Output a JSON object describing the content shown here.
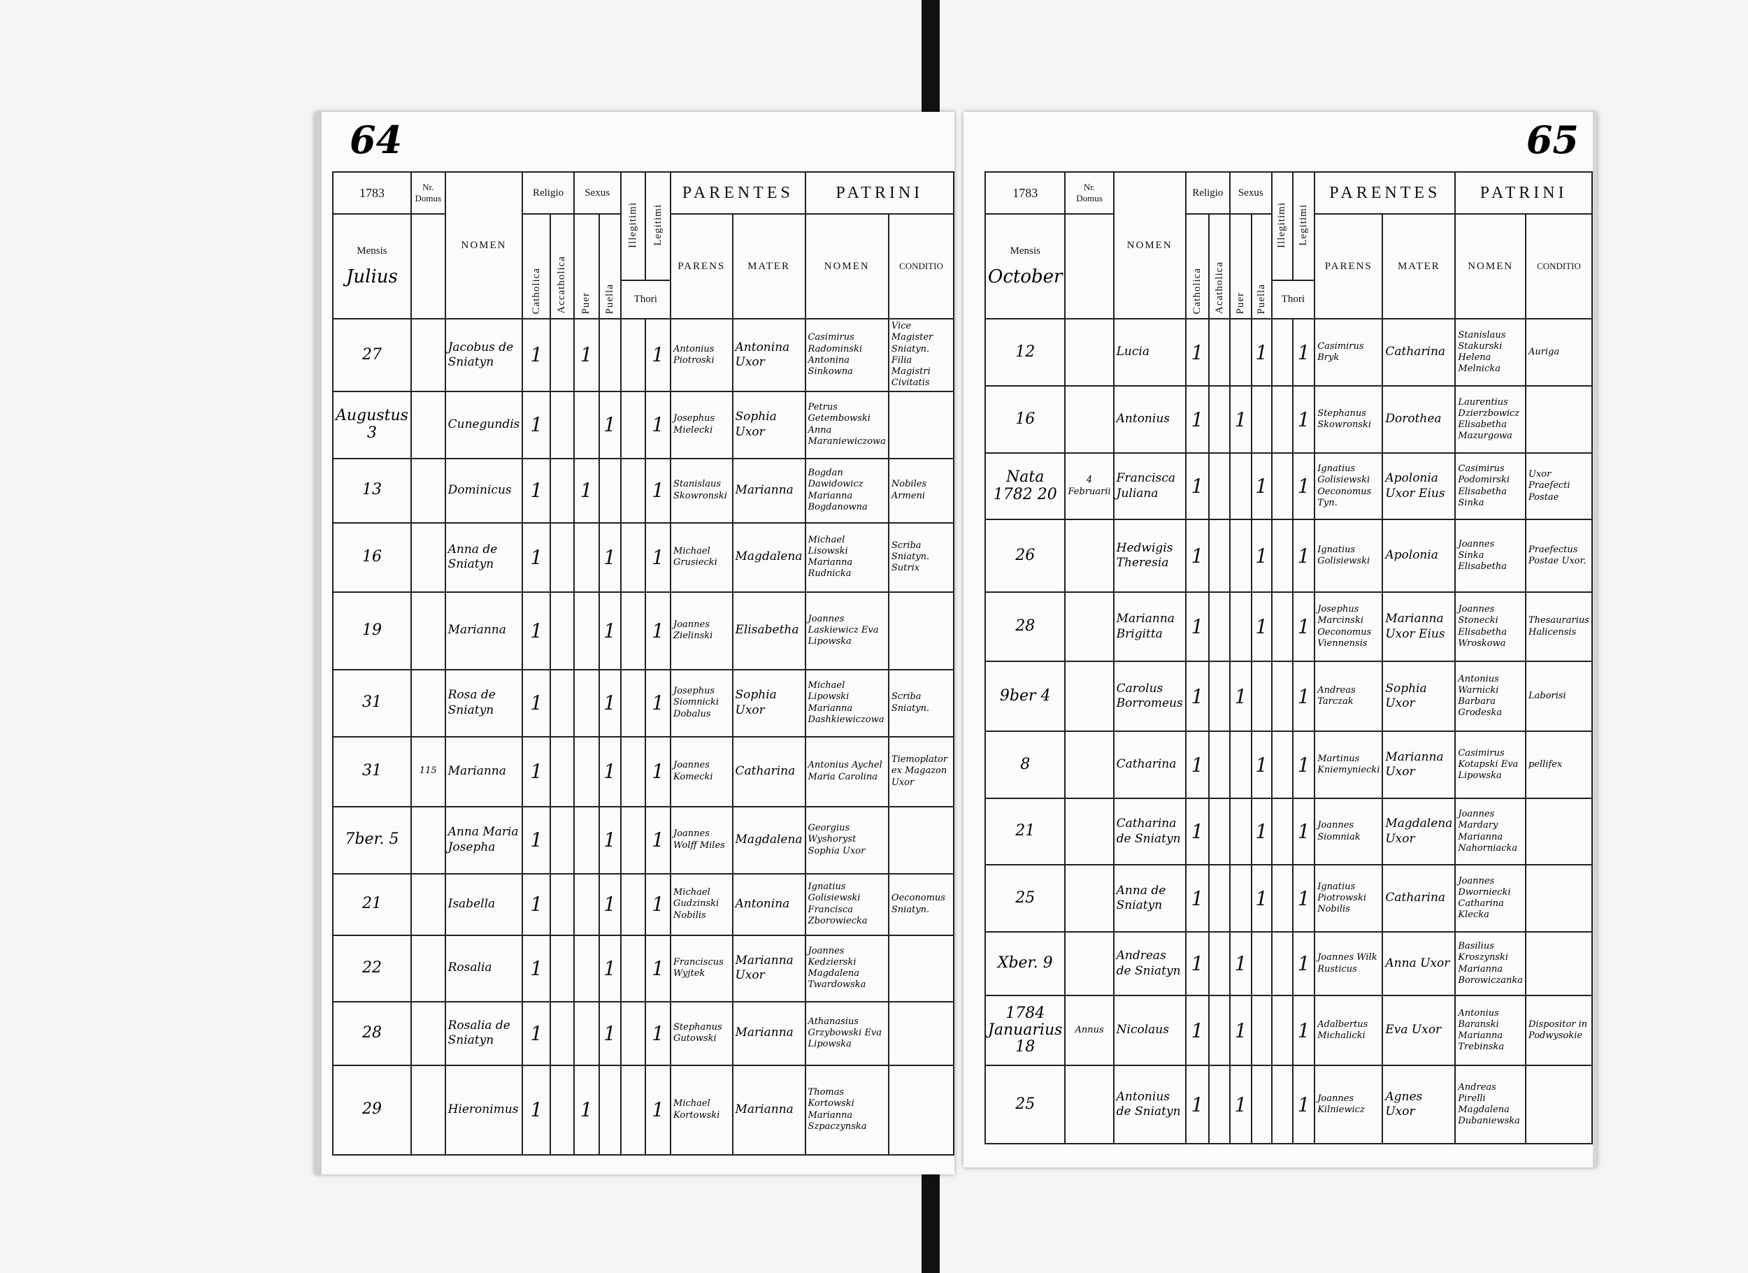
{
  "colors": {
    "ink": "#111111",
    "paper": "#fbfbfb",
    "background": "#f4f4f4",
    "spine": "#111111"
  },
  "header": {
    "religio": "Religio",
    "sexus": "Sexus",
    "nomen": "NOMEN",
    "catholica": "Catholica",
    "acatholica_left": "Accatholica",
    "acatholica_right": "Acatholica",
    "puer": "Puer",
    "puella": "Puella",
    "illegitimi": "Illegitimi",
    "legitimi": "Legitimi",
    "thori": "Thori",
    "parentes": "PARENTES",
    "patrini": "PATRINI",
    "parens": "PARENS",
    "mater": "MATER",
    "patrini_nomen": "NOMEN",
    "conditio": "CONDITIO",
    "mensis": "Mensis",
    "nr": "Nr.",
    "domus": "Domus"
  },
  "pages": [
    {
      "folio": "64",
      "year": "1783",
      "month": "Julius",
      "rows": [
        {
          "day": "27",
          "domus": "",
          "nomen": "Jacobus de Sniatyn",
          "catholica": "1",
          "acatholica": "",
          "puer": "1",
          "puella": "",
          "illegitimi": "",
          "legitimi": "1",
          "parens": "Antonius Piotroski",
          "mater": "Antonina Uxor",
          "patrini": "Casimirus Radominski Antonina Sinkowna",
          "conditio": "Vice Magister Sniatyn. Filia Magistri Civitatis"
        },
        {
          "day": "Augustus 3",
          "domus": "",
          "nomen": "Cunegundis",
          "catholica": "1",
          "acatholica": "",
          "puer": "",
          "puella": "1",
          "illegitimi": "",
          "legitimi": "1",
          "parens": "Josephus Mielecki",
          "mater": "Sophia Uxor",
          "patrini": "Petrus Getembowski Anna Maraniewiczowa",
          "conditio": ""
        },
        {
          "day": "13",
          "domus": "",
          "nomen": "Dominicus",
          "catholica": "1",
          "acatholica": "",
          "puer": "1",
          "puella": "",
          "illegitimi": "",
          "legitimi": "1",
          "parens": "Stanislaus Skowronski",
          "mater": "Marianna",
          "patrini": "Bogdan Dawidowicz Marianna Bogdanowna",
          "conditio": "Nobiles Armeni"
        },
        {
          "day": "16",
          "domus": "",
          "nomen": "Anna de Sniatyn",
          "catholica": "1",
          "acatholica": "",
          "puer": "",
          "puella": "1",
          "illegitimi": "",
          "legitimi": "1",
          "parens": "Michael Grusiecki",
          "mater": "Magdalena",
          "patrini": "Michael Lisowski Marianna Rudnicka",
          "conditio": "Scriba Sniatyn. Sutrix"
        },
        {
          "day": "19",
          "domus": "",
          "nomen": "Marianna",
          "catholica": "1",
          "acatholica": "",
          "puer": "",
          "puella": "1",
          "illegitimi": "",
          "legitimi": "1",
          "parens": "Joannes Zielinski",
          "mater": "Elisabetha",
          "patrini": "Joannes Laskiewicz Eva Lipowska",
          "conditio": ""
        },
        {
          "day": "31",
          "domus": "",
          "nomen": "Rosa de Sniatyn",
          "catholica": "1",
          "acatholica": "",
          "puer": "",
          "puella": "1",
          "illegitimi": "",
          "legitimi": "1",
          "parens": "Josephus Siomnicki Dobalus",
          "mater": "Sophia Uxor",
          "patrini": "Michael Lipowski Marianna Dashkiewiczowa",
          "conditio": "Scriba Sniatyn."
        },
        {
          "day": "31",
          "domus": "115",
          "nomen": "Marianna",
          "catholica": "1",
          "acatholica": "",
          "puer": "",
          "puella": "1",
          "illegitimi": "",
          "legitimi": "1",
          "parens": "Joannes Komecki",
          "mater": "Catharina",
          "patrini": "Antonius Aychel Maria Carolina",
          "conditio": "Tiemoplator ex Magazon Uxor"
        },
        {
          "day": "7ber. 5",
          "domus": "",
          "nomen": "Anna Maria Josepha",
          "catholica": "1",
          "acatholica": "",
          "puer": "",
          "puella": "1",
          "illegitimi": "",
          "legitimi": "1",
          "parens": "Joannes Wolff Miles",
          "mater": "Magdalena",
          "patrini": "Georgius Wyshoryst Sophia Uxor",
          "conditio": ""
        },
        {
          "day": "21",
          "domus": "",
          "nomen": "Isabella",
          "catholica": "1",
          "acatholica": "",
          "puer": "",
          "puella": "1",
          "illegitimi": "",
          "legitimi": "1",
          "parens": "Michael Gudzinski Nobilis",
          "mater": "Antonina",
          "patrini": "Ignatius Golisiewski Francisca Zborowiecka",
          "conditio": "Oeconomus Sniatyn."
        },
        {
          "day": "22",
          "domus": "",
          "nomen": "Rosalia",
          "catholica": "1",
          "acatholica": "",
          "puer": "",
          "puella": "1",
          "illegitimi": "",
          "legitimi": "1",
          "parens": "Franciscus Wyjtek",
          "mater": "Marianna Uxor",
          "patrini": "Joannes Kedzierski Magdalena Twardowska",
          "conditio": ""
        },
        {
          "day": "28",
          "domus": "",
          "nomen": "Rosalia de Sniatyn",
          "catholica": "1",
          "acatholica": "",
          "puer": "",
          "puella": "1",
          "illegitimi": "",
          "legitimi": "1",
          "parens": "Stephanus Gutowski",
          "mater": "Marianna",
          "patrini": "Athanasius Grzybowski Eva Lipowska",
          "conditio": ""
        },
        {
          "day": "29",
          "domus": "",
          "nomen": "Hieronimus",
          "catholica": "1",
          "acatholica": "",
          "puer": "1",
          "puella": "",
          "illegitimi": "",
          "legitimi": "1",
          "parens": "Michael Kortowski",
          "mater": "Marianna",
          "patrini": "Thomas Kortowski Marianna Szpaczynska",
          "conditio": ""
        }
      ]
    },
    {
      "folio": "65",
      "year": "1783",
      "month": "October",
      "rows": [
        {
          "day": "12",
          "domus": "",
          "nomen": "Lucia",
          "catholica": "1",
          "acatholica": "",
          "puer": "",
          "puella": "1",
          "illegitimi": "",
          "legitimi": "1",
          "parens": "Casimirus Bryk",
          "mater": "Catharina",
          "patrini": "Stanislaus Stakurski Helena Melnicka",
          "conditio": "Auriga"
        },
        {
          "day": "16",
          "domus": "",
          "nomen": "Antonius",
          "catholica": "1",
          "acatholica": "",
          "puer": "1",
          "puella": "",
          "illegitimi": "",
          "legitimi": "1",
          "parens": "Stephanus Skowronski",
          "mater": "Dorothea",
          "patrini": "Laurentius Dzierzbowicz Elisabetha Mazurgowa",
          "conditio": ""
        },
        {
          "day": "Nata 1782 20",
          "domus": "4 Februarii",
          "nomen": "Francisca Juliana",
          "catholica": "1",
          "acatholica": "",
          "puer": "",
          "puella": "1",
          "illegitimi": "",
          "legitimi": "1",
          "parens": "Ignatius Golisiewski Oeconomus Tyn.",
          "mater": "Apolonia Uxor Eius",
          "patrini": "Casimirus Podomirski Elisabetha Sinka",
          "conditio": "Uxor Praefecti Postae"
        },
        {
          "day": "26",
          "domus": "",
          "nomen": "Hedwigis Theresia",
          "catholica": "1",
          "acatholica": "",
          "puer": "",
          "puella": "1",
          "illegitimi": "",
          "legitimi": "1",
          "parens": "Ignatius Golisiewski",
          "mater": "Apolonia",
          "patrini": "Joannes Sinka Elisabetha",
          "conditio": "Praefectus Postae Uxor."
        },
        {
          "day": "28",
          "domus": "",
          "nomen": "Marianna Brigitta",
          "catholica": "1",
          "acatholica": "",
          "puer": "",
          "puella": "1",
          "illegitimi": "",
          "legitimi": "1",
          "parens": "Josephus Marcinski Oeconomus Viennensis",
          "mater": "Marianna Uxor Eius",
          "patrini": "Joannes Stonecki Elisabetha Wroskowa",
          "conditio": "Thesaurarius Halicensis"
        },
        {
          "day": "9ber 4",
          "domus": "",
          "nomen": "Carolus Borromeus",
          "catholica": "1",
          "acatholica": "",
          "puer": "1",
          "puella": "",
          "illegitimi": "",
          "legitimi": "1",
          "parens": "Andreas Tarczak",
          "mater": "Sophia Uxor",
          "patrini": "Antonius Warnicki Barbara Grodeska",
          "conditio": "Laborisi"
        },
        {
          "day": "8",
          "domus": "",
          "nomen": "Catharina",
          "catholica": "1",
          "acatholica": "",
          "puer": "",
          "puella": "1",
          "illegitimi": "",
          "legitimi": "1",
          "parens": "Martinus Kniemyniecki",
          "mater": "Marianna Uxor",
          "patrini": "Casimirus Kotapski Eva Lipowska",
          "conditio": "pellifex"
        },
        {
          "day": "21",
          "domus": "",
          "nomen": "Catharina de Sniatyn",
          "catholica": "1",
          "acatholica": "",
          "puer": "",
          "puella": "1",
          "illegitimi": "",
          "legitimi": "1",
          "parens": "Joannes Siomniak",
          "mater": "Magdalena Uxor",
          "patrini": "Joannes Mardary Marianna Nahorniacka",
          "conditio": ""
        },
        {
          "day": "25",
          "domus": "",
          "nomen": "Anna de Sniatyn",
          "catholica": "1",
          "acatholica": "",
          "puer": "",
          "puella": "1",
          "illegitimi": "",
          "legitimi": "1",
          "parens": "Ignatius Piotrowski Nobilis",
          "mater": "Catharina",
          "patrini": "Joannes Dworniecki Catharina Klecka",
          "conditio": ""
        },
        {
          "day": "Xber. 9",
          "domus": "",
          "nomen": "Andreas de Sniatyn",
          "catholica": "1",
          "acatholica": "",
          "puer": "1",
          "puella": "",
          "illegitimi": "",
          "legitimi": "1",
          "parens": "Joannes Wilk Rusticus",
          "mater": "Anna Uxor",
          "patrini": "Basilius Kroszynski Marianna Borowiczanka",
          "conditio": ""
        },
        {
          "day": "1784 Januarius 18",
          "domus": "Annus",
          "nomen": "Nicolaus",
          "catholica": "1",
          "acatholica": "",
          "puer": "1",
          "puella": "",
          "illegitimi": "",
          "legitimi": "1",
          "parens": "Adalbertus Michalicki",
          "mater": "Eva Uxor",
          "patrini": "Antonius Baranski Marianna Trebinska",
          "conditio": "Dispositor in Podwysokie"
        },
        {
          "day": "25",
          "domus": "",
          "nomen": "Antonius de Sniatyn",
          "catholica": "1",
          "acatholica": "",
          "puer": "1",
          "puella": "",
          "illegitimi": "",
          "legitimi": "1",
          "parens": "Joannes Kilniewicz",
          "mater": "Agnes Uxor",
          "patrini": "Andreas Pirelli Magdalena Dubaniewska",
          "conditio": ""
        }
      ]
    }
  ]
}
